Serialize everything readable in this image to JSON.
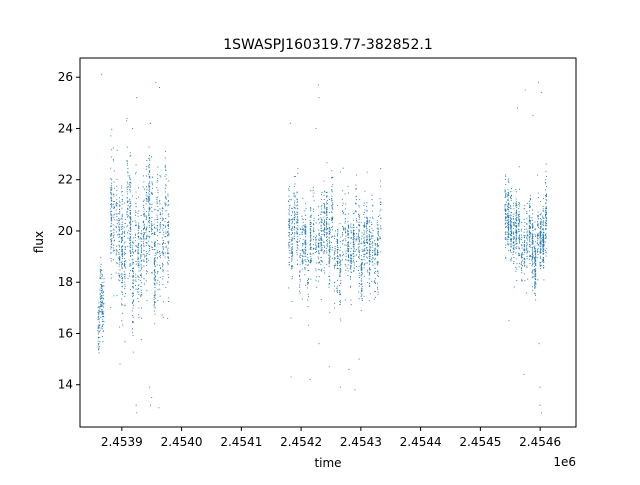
{
  "chart_data": {
    "type": "scatter",
    "title": "1SWASPJ160319.77-382852.1",
    "xlabel": "time",
    "ylabel": "flux",
    "x_offset_label": "1e6",
    "xlim": [
      2.45383,
      2.45466
    ],
    "ylim": [
      12.35,
      26.75
    ],
    "x_ticks": [
      2.4539,
      2.454,
      2.4541,
      2.4542,
      2.4543,
      2.4544,
      2.4545,
      2.4546
    ],
    "x_tick_labels": [
      "2.4539",
      "2.4540",
      "2.4541",
      "2.4542",
      "2.4543",
      "2.4544",
      "2.4545",
      "2.4546"
    ],
    "y_ticks": [
      14,
      16,
      18,
      20,
      22,
      24,
      26
    ],
    "y_tick_labels": [
      "14",
      "16",
      "18",
      "20",
      "22",
      "24",
      "26"
    ],
    "grid": false,
    "marker_color": "#1f77b4",
    "series": [
      {
        "segments": [
          {
            "x_start": 2.45386,
            "x_end": 2.45387,
            "y_center": 16.8,
            "y_spread": 1.4,
            "count": 160
          },
          {
            "x_start": 2.45388,
            "x_end": 2.45398,
            "y_center": 19.8,
            "y_spread": 2.6,
            "count": 1400
          },
          {
            "x_start": 2.454178,
            "x_end": 2.454335,
            "y_center": 19.6,
            "y_spread": 1.8,
            "count": 1500
          },
          {
            "x_start": 2.45454,
            "x_end": 2.454612,
            "y_center": 19.8,
            "y_spread": 1.6,
            "count": 1000
          }
        ],
        "outliers": [
          {
            "x": 2.453866,
            "y": 26.1
          },
          {
            "x": 2.453908,
            "y": 24.3
          },
          {
            "x": 2.453918,
            "y": 24.0
          },
          {
            "x": 2.453925,
            "y": 25.2
          },
          {
            "x": 2.453948,
            "y": 24.2
          },
          {
            "x": 2.453957,
            "y": 25.8
          },
          {
            "x": 2.453963,
            "y": 25.6
          },
          {
            "x": 2.453924,
            "y": 13.2
          },
          {
            "x": 2.453925,
            "y": 12.9
          },
          {
            "x": 2.453946,
            "y": 13.9
          },
          {
            "x": 2.453948,
            "y": 13.2
          },
          {
            "x": 2.45395,
            "y": 13.5
          },
          {
            "x": 2.453962,
            "y": 13.1
          },
          {
            "x": 2.453897,
            "y": 14.8
          },
          {
            "x": 2.454182,
            "y": 24.2
          },
          {
            "x": 2.454229,
            "y": 25.7
          },
          {
            "x": 2.45423,
            "y": 25.2
          },
          {
            "x": 2.454225,
            "y": 24.0
          },
          {
            "x": 2.454266,
            "y": 22.3
          },
          {
            "x": 2.454183,
            "y": 14.3
          },
          {
            "x": 2.454183,
            "y": 16.6
          },
          {
            "x": 2.454215,
            "y": 14.2
          },
          {
            "x": 2.45423,
            "y": 15.6
          },
          {
            "x": 2.454247,
            "y": 14.7
          },
          {
            "x": 2.454266,
            "y": 13.9
          },
          {
            "x": 2.45428,
            "y": 14.6
          },
          {
            "x": 2.45429,
            "y": 13.8
          },
          {
            "x": 2.454297,
            "y": 15.0
          },
          {
            "x": 2.454562,
            "y": 24.8
          },
          {
            "x": 2.454575,
            "y": 25.5
          },
          {
            "x": 2.454588,
            "y": 24.5
          },
          {
            "x": 2.454597,
            "y": 25.8
          },
          {
            "x": 2.454602,
            "y": 25.4
          },
          {
            "x": 2.454548,
            "y": 16.5
          },
          {
            "x": 2.454573,
            "y": 14.4
          },
          {
            "x": 2.454598,
            "y": 15.6
          },
          {
            "x": 2.4546,
            "y": 13.9
          },
          {
            "x": 2.4546,
            "y": 13.2
          },
          {
            "x": 2.454602,
            "y": 12.9
          }
        ]
      }
    ]
  }
}
